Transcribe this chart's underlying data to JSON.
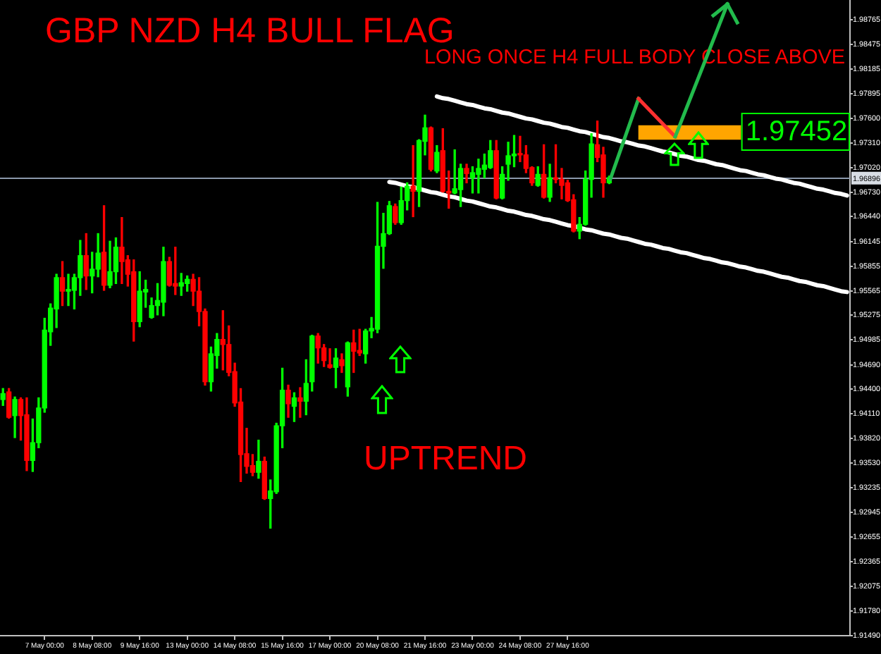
{
  "chart_data": {
    "type": "candlestick",
    "title": "GBP NZD H4 BULL FLAG",
    "annotations": [
      "LONG ONCE H4 FULL BODY CLOSE ABOVE",
      "UPTREND"
    ],
    "categories": [
      null,
      null,
      null,
      null,
      null,
      null,
      null,
      "7 May 00:00",
      null,
      null,
      null,
      null,
      null,
      null,
      null,
      "8 May 08:00",
      null,
      null,
      null,
      null,
      null,
      null,
      null,
      "9 May 16:00",
      null,
      null,
      null,
      null,
      null,
      null,
      null,
      "13 May 00:00",
      null,
      null,
      null,
      null,
      null,
      null,
      null,
      "14 May 08:00",
      null,
      null,
      null,
      null,
      null,
      null,
      null,
      "15 May 16:00",
      null,
      null,
      null,
      null,
      null,
      null,
      null,
      "17 May 00:00",
      null,
      null,
      null,
      null,
      null,
      null,
      null,
      "20 May 08:00",
      null,
      null,
      null,
      null,
      null,
      null,
      null,
      "21 May 16:00",
      null,
      null,
      null,
      null,
      null,
      null,
      null,
      "23 May 00:00",
      null,
      null,
      null,
      null,
      null,
      null,
      null,
      "24 May 08:00",
      null,
      null,
      null,
      null,
      null,
      null,
      null,
      "27 May 16:00",
      null,
      null,
      null,
      null,
      null,
      null,
      null,
      null,
      null,
      null,
      null,
      null,
      null,
      null,
      null,
      null,
      null,
      null,
      null,
      null,
      null,
      null,
      null,
      null,
      null,
      null,
      null,
      null,
      null,
      null,
      null,
      null,
      null,
      null,
      null,
      null,
      null,
      null,
      null,
      null,
      null,
      null,
      null,
      null,
      null,
      null,
      null
    ],
    "ohlc": [
      [
        1.9428,
        1.9441,
        1.9421,
        1.9435
      ],
      [
        1.9437,
        1.9441,
        1.9406,
        1.9407
      ],
      [
        1.9409,
        1.9431,
        1.9383,
        1.9428
      ],
      [
        1.9428,
        1.943,
        1.938,
        1.9409
      ],
      [
        1.941,
        1.943,
        1.9344,
        1.9356
      ],
      [
        1.9356,
        1.9405,
        1.9343,
        1.9377
      ],
      [
        1.9377,
        1.943,
        1.9371,
        1.9418
      ],
      [
        1.9418,
        1.9524,
        1.9413,
        1.951
      ],
      [
        1.9508,
        1.9541,
        1.9492,
        1.9536
      ],
      [
        1.9535,
        1.9576,
        1.9513,
        1.9572
      ],
      [
        1.9572,
        1.9591,
        1.9539,
        1.9556
      ],
      [
        1.9556,
        1.9576,
        1.9539,
        1.9558
      ],
      [
        1.9557,
        1.9576,
        1.9535,
        1.9572
      ],
      [
        1.9572,
        1.9616,
        1.9551,
        1.9598
      ],
      [
        1.9598,
        1.9624,
        1.9558,
        1.9574
      ],
      [
        1.9574,
        1.9602,
        1.9554,
        1.9582
      ],
      [
        1.9582,
        1.9624,
        1.9573,
        1.9601
      ],
      [
        1.9602,
        1.9657,
        1.9557,
        1.9563
      ],
      [
        1.9563,
        1.9615,
        1.956,
        1.9579
      ],
      [
        1.9579,
        1.9619,
        1.9565,
        1.9608
      ],
      [
        1.9608,
        1.9643,
        1.9565,
        1.9591
      ],
      [
        1.9593,
        1.9598,
        1.9562,
        1.9576
      ],
      [
        1.9579,
        1.9593,
        1.9497,
        1.952
      ],
      [
        1.952,
        1.9579,
        1.9514,
        1.9556
      ],
      [
        1.9555,
        1.9569,
        1.9537,
        1.9558
      ],
      [
        1.9525,
        1.9548,
        1.9524,
        1.9539
      ],
      [
        1.9539,
        1.9565,
        1.9528,
        1.9545
      ],
      [
        1.9543,
        1.9608,
        1.9527,
        1.9591
      ],
      [
        1.9591,
        1.9596,
        1.9562,
        1.9563
      ],
      [
        1.9565,
        1.9608,
        1.9552,
        1.9562
      ],
      [
        1.9562,
        1.9577,
        1.9551,
        1.9566
      ],
      [
        1.9565,
        1.9574,
        1.9556,
        1.957
      ],
      [
        1.957,
        1.9576,
        1.9539,
        1.9556
      ],
      [
        1.9556,
        1.9572,
        1.9515,
        1.9532
      ],
      [
        1.9532,
        1.9535,
        1.9445,
        1.9449
      ],
      [
        1.9449,
        1.949,
        1.9438,
        1.9482
      ],
      [
        1.948,
        1.9506,
        1.9465,
        1.9499
      ],
      [
        1.9499,
        1.9533,
        1.9463,
        1.9493
      ],
      [
        1.9493,
        1.9515,
        1.9456,
        1.946
      ],
      [
        1.9461,
        1.9471,
        1.942,
        1.9424
      ],
      [
        1.9425,
        1.9441,
        1.9331,
        1.9363
      ],
      [
        1.9364,
        1.9394,
        1.9341,
        1.9349
      ],
      [
        1.935,
        1.9363,
        1.9338,
        1.9342
      ],
      [
        1.9342,
        1.938,
        1.9335,
        1.9355
      ],
      [
        1.9355,
        1.936,
        1.931,
        1.9311
      ],
      [
        1.9311,
        1.9333,
        1.9276,
        1.932
      ],
      [
        1.9319,
        1.94,
        1.9317,
        1.9397
      ],
      [
        1.9397,
        1.9465,
        1.9371,
        1.9439
      ],
      [
        1.9439,
        1.9445,
        1.9407,
        1.9423
      ],
      [
        1.942,
        1.9436,
        1.9402,
        1.943
      ],
      [
        1.943,
        1.9442,
        1.9407,
        1.9426
      ],
      [
        1.9426,
        1.9475,
        1.941,
        1.9447
      ],
      [
        1.9449,
        1.9504,
        1.9438,
        1.9503
      ],
      [
        1.9503,
        1.9506,
        1.9471,
        1.9489
      ],
      [
        1.9489,
        1.9493,
        1.9467,
        1.9474
      ],
      [
        1.9469,
        1.9488,
        1.9465,
        1.9466
      ],
      [
        1.9466,
        1.9488,
        1.9442,
        1.9477
      ],
      [
        1.9475,
        1.9482,
        1.946,
        1.9468
      ],
      [
        1.9443,
        1.9496,
        1.9432,
        1.9495
      ],
      [
        1.9495,
        1.951,
        1.946,
        1.9485
      ],
      [
        1.9486,
        1.9511,
        1.948,
        1.9483
      ],
      [
        1.9482,
        1.9511,
        1.9471,
        1.9509
      ],
      [
        1.9509,
        1.9525,
        1.9501,
        1.9512
      ],
      [
        1.9511,
        1.9661,
        1.9507,
        1.9609
      ],
      [
        1.9609,
        1.9648,
        1.9583,
        1.9624
      ],
      [
        1.9624,
        1.9662,
        1.9623,
        1.9657
      ],
      [
        1.9656,
        1.9659,
        1.9635,
        1.9637
      ],
      [
        1.9637,
        1.9679,
        1.9635,
        1.9663
      ],
      [
        1.9663,
        1.9684,
        1.9652,
        1.968
      ],
      [
        1.968,
        1.9728,
        1.9644,
        1.9674
      ],
      [
        1.9674,
        1.9735,
        1.9656,
        1.9734
      ],
      [
        1.9733,
        1.9764,
        1.9717,
        1.9749
      ],
      [
        1.9749,
        1.975,
        1.9698,
        1.97
      ],
      [
        1.9698,
        1.9728,
        1.9696,
        1.972
      ],
      [
        1.9722,
        1.9748,
        1.9673,
        1.9674
      ],
      [
        1.9674,
        1.9698,
        1.9654,
        1.9672
      ],
      [
        1.9672,
        1.9723,
        1.9671,
        1.9677
      ],
      [
        1.9676,
        1.9706,
        1.9656,
        1.9701
      ],
      [
        1.9701,
        1.9706,
        1.9684,
        1.9695
      ],
      [
        1.969,
        1.9703,
        1.9672,
        1.9696
      ],
      [
        1.9694,
        1.9712,
        1.9672,
        1.9701
      ],
      [
        1.97,
        1.9718,
        1.969,
        1.9705
      ],
      [
        1.9702,
        1.9734,
        1.9701,
        1.9722
      ],
      [
        1.9722,
        1.9734,
        1.9665,
        1.9666
      ],
      [
        1.9666,
        1.9703,
        1.9665,
        1.9694
      ],
      [
        1.9706,
        1.9732,
        1.9687,
        1.9716
      ],
      [
        1.9716,
        1.974,
        1.9703,
        1.9718
      ],
      [
        1.9718,
        1.9739,
        1.9709,
        1.9717
      ],
      [
        1.9717,
        1.9728,
        1.9696,
        1.9701
      ],
      [
        1.9702,
        1.9703,
        1.9681,
        1.9684
      ],
      [
        1.9681,
        1.9703,
        1.968,
        1.9694
      ],
      [
        1.9694,
        1.9729,
        1.9666,
        1.9667
      ],
      [
        1.9667,
        1.9706,
        1.9662,
        1.969
      ],
      [
        1.969,
        1.9729,
        1.9684,
        1.9688
      ],
      [
        1.9688,
        1.9701,
        1.9665,
        1.9681
      ],
      [
        1.9684,
        1.9687,
        1.9662,
        1.9663
      ],
      [
        1.9664,
        1.967,
        1.9626,
        1.9627
      ],
      [
        1.9627,
        1.9643,
        1.9618,
        1.9635
      ],
      [
        1.9635,
        1.9698,
        1.9634,
        1.9688
      ],
      [
        1.9688,
        1.9742,
        1.9667,
        1.973
      ],
      [
        1.9729,
        1.9757,
        1.9709,
        1.9714
      ],
      [
        1.9717,
        1.9726,
        1.9667,
        1.9684
      ],
      [
        1.9684,
        1.9692,
        1.9683,
        1.969
      ],
      null,
      null,
      null,
      null,
      null,
      null,
      null,
      null,
      null,
      null,
      null,
      null,
      null,
      null,
      null,
      null,
      null,
      null,
      null,
      null,
      null,
      null,
      null,
      null,
      null,
      null,
      null,
      null,
      null,
      null,
      null,
      null,
      null,
      null,
      null,
      null,
      null,
      null,
      null,
      null
    ],
    "colors": [
      "#00ff00",
      "#ff0000",
      "#00ff00",
      "#ff0000",
      "#ff0000",
      "#00ff00",
      "#00ff00",
      "#00ff00",
      "#00ff00",
      "#00ff00",
      "#ff0000",
      "#00ff00",
      "#00ff00",
      "#00ff00",
      "#ff0000",
      "#00ff00",
      "#00ff00",
      "#ff0000",
      "#00ff00",
      "#00ff00",
      "#ff0000",
      "#ff0000",
      "#ff0000",
      "#00ff00",
      "#00ff00",
      "#00ff00",
      "#00ff00",
      "#00ff00",
      "#ff0000",
      "#ff0000",
      "#00ff00",
      "#00ff00",
      "#ff0000",
      "#ff0000",
      "#ff0000",
      "#00ff00",
      "#00ff00",
      "#ff0000",
      "#ff0000",
      "#ff0000",
      "#ff0000",
      "#ff0000",
      "#ff0000",
      "#00ff00",
      "#ff0000",
      "#00ff00",
      "#00ff00",
      "#00ff00",
      "#ff0000",
      "#00ff00",
      "#ff0000",
      "#00ff00",
      "#00ff00",
      "#ff0000",
      "#ff0000",
      "#ff0000",
      "#00ff00",
      "#ff0000",
      "#00ff00",
      "#ff0000",
      "#ff0000",
      "#00ff00",
      "#00ff00",
      "#00ff00",
      "#00ff00",
      "#00ff00",
      "#ff0000",
      "#00ff00",
      "#00ff00",
      "#ff0000",
      "#00ff00",
      "#00ff00",
      "#ff0000",
      "#00ff00",
      "#ff0000",
      "#ff0000",
      "#00ff00",
      "#00ff00",
      "#ff0000",
      "#00ff00",
      "#00ff00",
      "#00ff00",
      "#00ff00",
      "#ff0000",
      "#00ff00",
      "#00ff00",
      "#00ff00",
      "#ff0000",
      "#ff0000",
      "#ff0000",
      "#00ff00",
      "#ff0000",
      "#00ff00",
      "#ff0000",
      "#ff0000",
      "#ff0000",
      "#ff0000",
      "#00ff00",
      "#00ff00",
      "#00ff00",
      "#ff0000",
      "#ff0000",
      "#00ff00",
      null,
      null,
      null,
      null,
      null,
      null,
      null,
      null,
      null,
      null,
      null,
      null,
      null,
      null,
      null,
      null,
      null,
      null,
      null,
      null,
      null,
      null,
      null,
      null,
      null,
      null,
      null,
      null,
      null,
      null,
      null,
      null,
      null,
      null,
      null,
      null,
      null,
      null,
      null,
      null
    ],
    "series": [
      {
        "type": "line",
        "color": "#ffffff",
        "values": [
          null,
          null,
          null,
          null,
          null,
          null,
          null,
          null,
          null,
          null,
          null,
          null,
          null,
          null,
          null,
          null,
          null,
          null,
          null,
          null,
          null,
          null,
          null,
          null,
          null,
          null,
          null,
          null,
          null,
          null,
          null,
          null,
          null,
          null,
          null,
          null,
          null,
          null,
          null,
          null,
          null,
          null,
          null,
          null,
          null,
          null,
          null,
          null,
          null,
          null,
          null,
          null,
          null,
          null,
          null,
          null,
          null,
          null,
          null,
          null,
          null,
          null,
          null,
          null,
          null,
          null,
          null,
          null,
          null,
          null,
          null,
          null,
          null,
          1.9786,
          1.9784,
          1.9783,
          1.9781,
          1.9779,
          1.9777,
          1.9776,
          1.9774,
          1.9772,
          1.9771,
          1.9769,
          1.9767,
          1.9766,
          1.9764,
          1.9762,
          1.976,
          1.9759,
          1.9757,
          1.9755,
          1.9754,
          1.9752,
          1.975,
          1.9749,
          1.9747,
          1.9745,
          1.9744,
          1.9742,
          1.974,
          1.9738,
          1.9737,
          1.9735,
          1.9733,
          1.9732,
          1.973,
          1.9728,
          1.9727,
          1.9725,
          1.9723,
          1.9721,
          1.972,
          1.9718,
          1.9716,
          1.9715,
          1.9713,
          1.9711,
          1.971,
          1.9708,
          1.9706,
          1.9705,
          1.9703,
          1.9701,
          1.9699,
          1.9698,
          1.9696,
          1.9694,
          1.9693,
          1.9691,
          1.9689,
          1.9688,
          1.9686,
          1.9684,
          1.9683,
          1.9681,
          1.9679,
          1.9677,
          1.9676,
          1.9674,
          1.9672,
          1.9671,
          1.9669
        ]
      },
      {
        "type": "line",
        "color": "#ffffff",
        "values": [
          null,
          null,
          null,
          null,
          null,
          null,
          null,
          null,
          null,
          null,
          null,
          null,
          null,
          null,
          null,
          null,
          null,
          null,
          null,
          null,
          null,
          null,
          null,
          null,
          null,
          null,
          null,
          null,
          null,
          null,
          null,
          null,
          null,
          null,
          null,
          null,
          null,
          null,
          null,
          null,
          null,
          null,
          null,
          null,
          null,
          null,
          null,
          null,
          null,
          null,
          null,
          null,
          null,
          null,
          null,
          null,
          null,
          null,
          null,
          null,
          null,
          null,
          null,
          null,
          null,
          1.9685,
          1.9684,
          1.9682,
          1.968,
          1.9679,
          1.9677,
          1.9675,
          1.9673,
          1.9672,
          1.967,
          1.9668,
          1.9667,
          1.9665,
          1.9663,
          1.9662,
          1.966,
          1.9658,
          1.9656,
          1.9655,
          1.9653,
          1.9651,
          1.965,
          1.9648,
          1.9646,
          1.9645,
          1.9643,
          1.9641,
          1.964,
          1.9638,
          1.9636,
          1.9634,
          1.9633,
          1.9631,
          1.9629,
          1.9628,
          1.9626,
          1.9624,
          1.9623,
          1.9621,
          1.9619,
          1.9618,
          1.9616,
          1.9614,
          1.9612,
          1.9611,
          1.9609,
          1.9607,
          1.9606,
          1.9604,
          1.9602,
          1.9601,
          1.9599,
          1.9597,
          1.9595,
          1.9594,
          1.9592,
          1.959,
          1.9589,
          1.9587,
          1.9585,
          1.9584,
          1.9582,
          1.958,
          1.9579,
          1.9577,
          1.9575,
          1.9573,
          1.9572,
          1.957,
          1.9568,
          1.9567,
          1.9565,
          1.9563,
          1.9562,
          1.956,
          1.9558,
          1.9556,
          1.9555
        ]
      }
    ],
    "ylim": [
      1.9149,
      1.99
    ],
    "yticks": [
      {
        "value": 1.9149,
        "label": "1.91490"
      },
      {
        "value": 1.9178,
        "label": "1.91780"
      },
      1.92075,
      1.92365,
      1.92655,
      1.92945,
      1.93235,
      {
        "value": 1.9353,
        "label": "1.93530"
      },
      {
        "value": 1.9382,
        "label": "1.93820"
      },
      {
        "value": 1.9411,
        "label": "1.94110"
      },
      {
        "value": 1.944,
        "label": "1.94400"
      },
      {
        "value": 1.9469,
        "label": "1.94690"
      },
      1.94985,
      1.95275,
      1.95565,
      1.95855,
      1.96145,
      {
        "value": 1.9644,
        "label": "1.96440"
      },
      {
        "value": 1.9673,
        "label": "1.96730"
      },
      {
        "value": 1.9702,
        "label": "1.97020"
      },
      {
        "value": 1.9731,
        "label": "1.97310"
      },
      {
        "value": 1.976,
        "label": "1.97600"
      },
      1.97895,
      1.98185,
      1.98475,
      1.98765
    ],
    "ref_lines": [
      {
        "axis": "y",
        "value": 1.96896,
        "label": "1.96896",
        "color": "#8a98ab"
      }
    ],
    "bands": [
      {
        "axis": "y",
        "from": 1.9735,
        "to": 1.9752,
        "label": "1.97452",
        "color": "#ffa500"
      }
    ],
    "grid": false,
    "legend": false
  }
}
